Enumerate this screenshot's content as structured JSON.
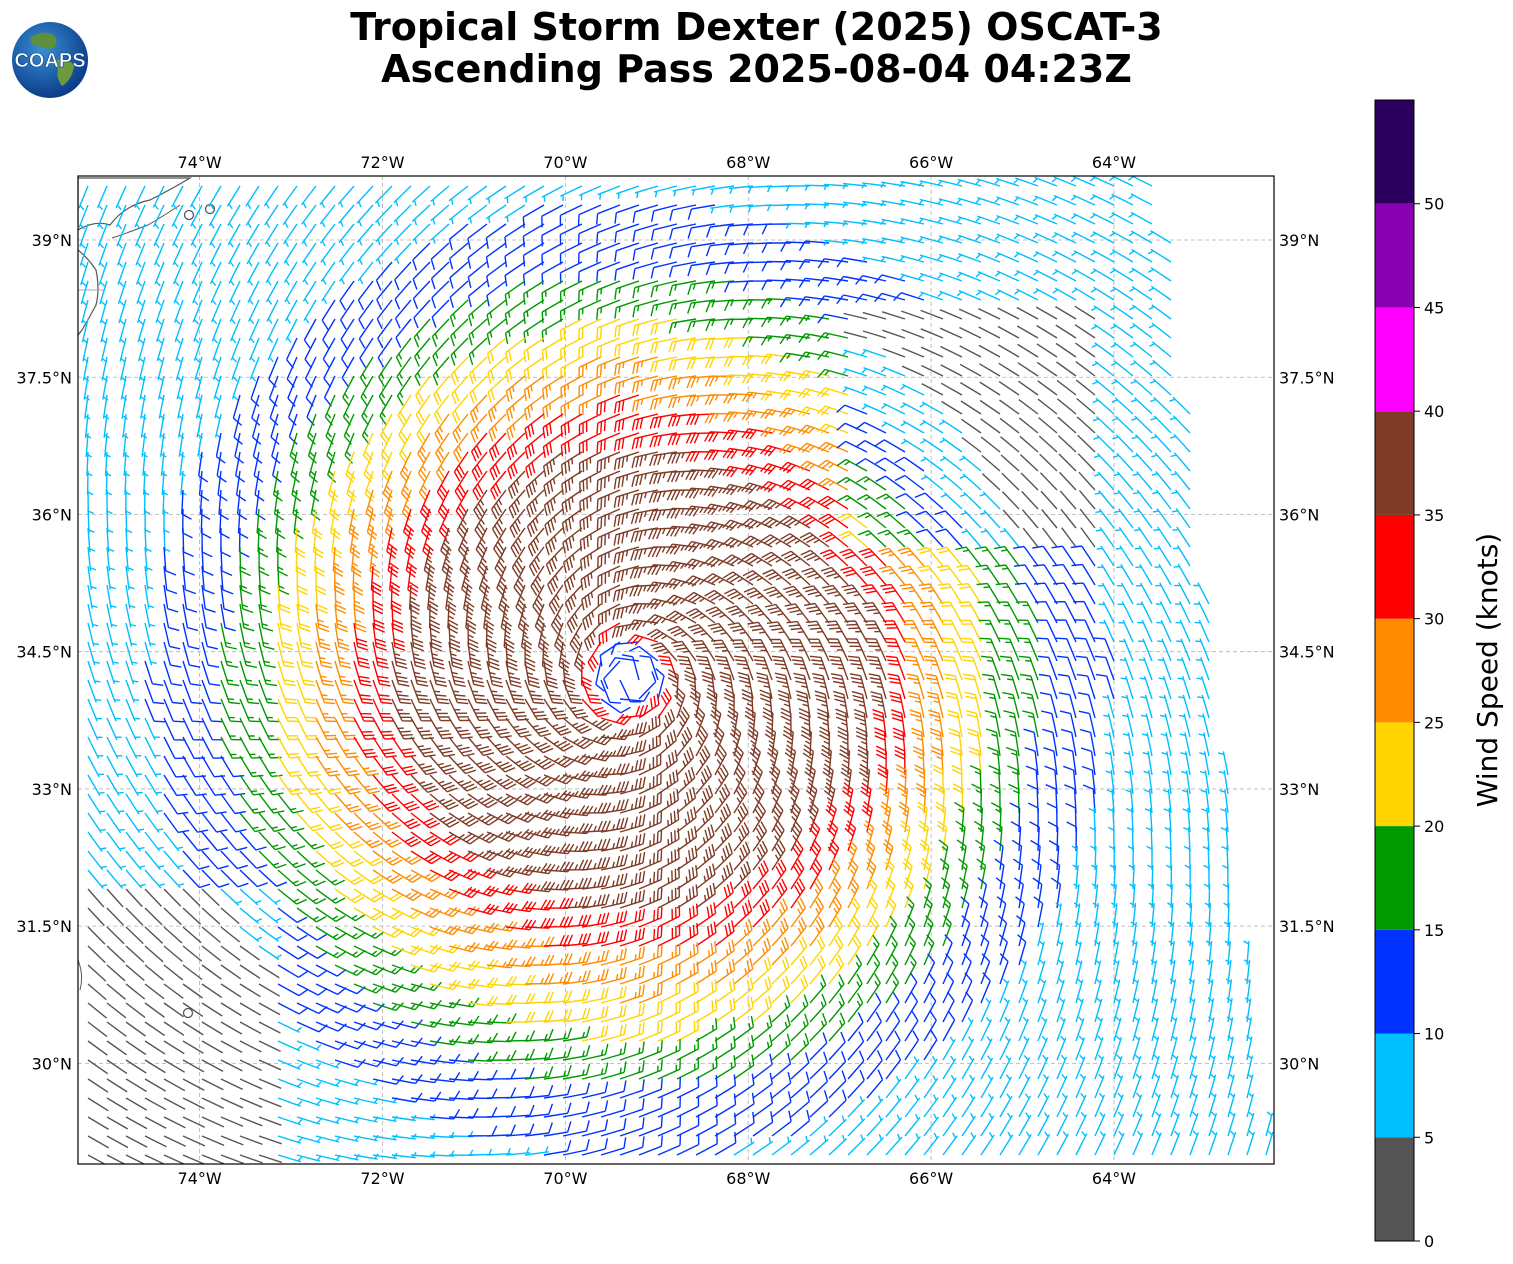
{
  "title": {
    "line1": "Tropical Storm Dexter (2025) OSCAT-3",
    "line2": "Ascending Pass 2025-08-04 04:23Z"
  },
  "logo": {
    "text": "COAPS",
    "icon": "globe-icon"
  },
  "map": {
    "lon_range": [
      -75.33,
      -62.25
    ],
    "lat_range": [
      28.9,
      39.7
    ],
    "lon_ticks": [
      {
        "value": -74,
        "label": "74°W"
      },
      {
        "value": -72,
        "label": "72°W"
      },
      {
        "value": -70,
        "label": "70°W"
      },
      {
        "value": -68,
        "label": "68°W"
      },
      {
        "value": -66,
        "label": "66°W"
      },
      {
        "value": -64,
        "label": "64°W"
      }
    ],
    "lat_ticks": [
      {
        "value": 39,
        "label": "39°N"
      },
      {
        "value": 37.5,
        "label": "37.5°N"
      },
      {
        "value": 36,
        "label": "36°N"
      },
      {
        "value": 34.5,
        "label": "34.5°N"
      },
      {
        "value": 33,
        "label": "33°N"
      },
      {
        "value": 31.5,
        "label": "31.5°N"
      },
      {
        "value": 30,
        "label": "30°N"
      }
    ],
    "grid": true,
    "storm_center": {
      "lon": -69.3,
      "lat": 34.2
    },
    "coast_color": "#555555"
  },
  "colorbar": {
    "label": "Wind Speed (knots)",
    "ticks": [
      0,
      5,
      10,
      15,
      20,
      25,
      30,
      35,
      40,
      45,
      50
    ],
    "bins": [
      {
        "min": 0,
        "max": 5,
        "color": "#555555"
      },
      {
        "min": 5,
        "max": 10,
        "color": "#00bfff"
      },
      {
        "min": 10,
        "max": 15,
        "color": "#0033ff"
      },
      {
        "min": 15,
        "max": 20,
        "color": "#009900"
      },
      {
        "min": 20,
        "max": 25,
        "color": "#ffd400"
      },
      {
        "min": 25,
        "max": 30,
        "color": "#ff8c00"
      },
      {
        "min": 30,
        "max": 35,
        "color": "#ff0000"
      },
      {
        "min": 35,
        "max": 40,
        "color": "#7f3b26"
      },
      {
        "min": 40,
        "max": 45,
        "color": "#ff00ff"
      },
      {
        "min": 45,
        "max": 50,
        "color": "#8800b0"
      },
      {
        "min": 50,
        "max": 55,
        "color": "#2a005e"
      }
    ]
  }
}
